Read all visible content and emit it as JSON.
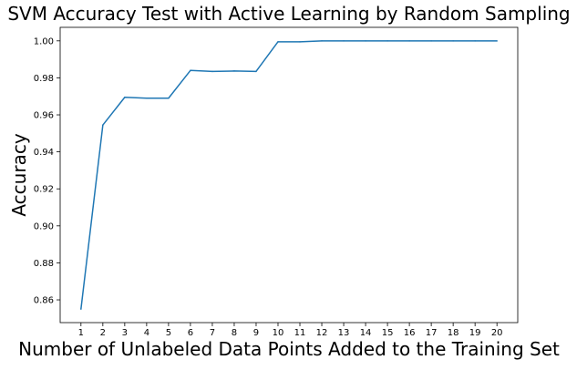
{
  "chart_data": {
    "type": "line",
    "title": "SVM Accuracy Test with Active Learning by Random Sampling",
    "xlabel": "Number of Unlabeled Data Points Added to the Training Set",
    "ylabel": "Accuracy",
    "x": [
      1,
      2,
      3,
      4,
      5,
      6,
      7,
      8,
      9,
      10,
      11,
      12,
      13,
      14,
      15,
      16,
      17,
      18,
      19,
      20
    ],
    "series": [
      {
        "values": [
          0.855,
          0.9545,
          0.9695,
          0.969,
          0.969,
          0.984,
          0.9835,
          0.9837,
          0.9835,
          0.9995,
          0.9995,
          1.0,
          1.0,
          1.0,
          1.0,
          1.0,
          1.0,
          1.0,
          1.0,
          1.0
        ],
        "color": "#1f77b4"
      }
    ],
    "xticks": [
      "1",
      "2",
      "3",
      "4",
      "5",
      "6",
      "7",
      "8",
      "9",
      "10",
      "11",
      "12",
      "13",
      "14",
      "15",
      "16",
      "17",
      "18",
      "19",
      "20"
    ],
    "yticks": [
      "0.86",
      "0.88",
      "0.90",
      "0.92",
      "0.94",
      "0.96",
      "0.98",
      "1.00"
    ],
    "xlim": [
      0.05,
      20.95
    ],
    "ylim": [
      0.8477,
      1.0073
    ],
    "grid": false,
    "legend": "none"
  }
}
